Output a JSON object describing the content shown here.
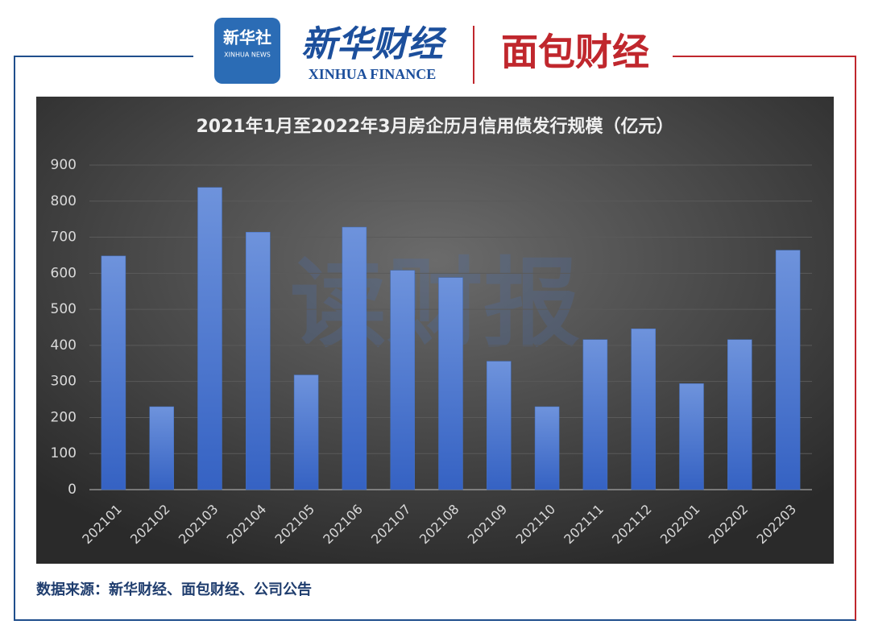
{
  "header": {
    "xinhua_logo": "新华社",
    "xinhua_logo_en": "XINHUA NEWS",
    "finance_logo": "新华财经",
    "finance_logo_en": "XINHUA FINANCE",
    "mianbao_logo": "面包财经"
  },
  "watermark": "读财报",
  "chart_data": {
    "type": "bar",
    "title": "2021年1月至2022年3月房企历月信用债发行规模（亿元）",
    "categories": [
      "202101",
      "202102",
      "202103",
      "202104",
      "202105",
      "202106",
      "202107",
      "202108",
      "202109",
      "202110",
      "202111",
      "202112",
      "202201",
      "202202",
      "202203"
    ],
    "values": [
      648,
      230,
      838,
      714,
      318,
      728,
      608,
      588,
      356,
      230,
      416,
      446,
      294,
      416,
      664
    ],
    "color": "#4472c4",
    "ylim": [
      0,
      900
    ],
    "yticks": [
      0,
      100,
      200,
      300,
      400,
      500,
      600,
      700,
      800,
      900
    ],
    "grid": true
  },
  "source": "数据来源：新华财经、面包财经、公司公告"
}
